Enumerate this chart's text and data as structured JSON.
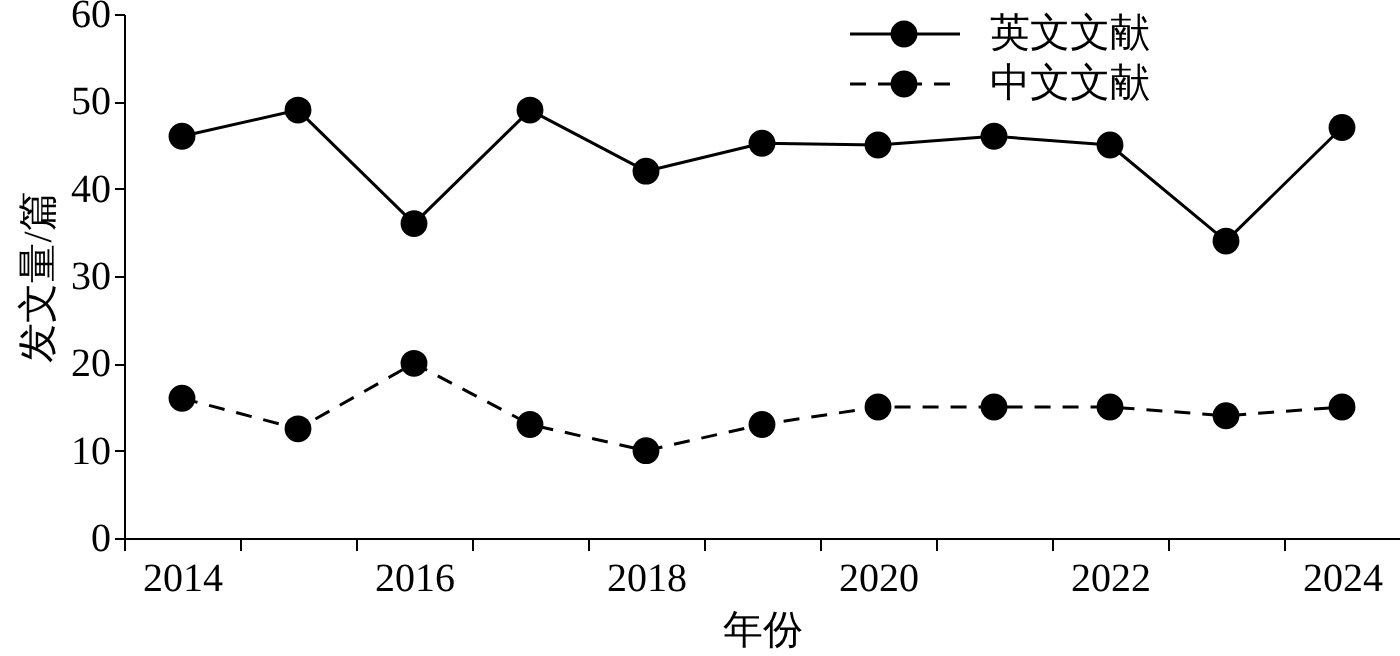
{
  "chart_data": {
    "type": "line",
    "xlabel": "年份",
    "ylabel": "发文量/篇",
    "categories": [
      "2014",
      null,
      "2016",
      null,
      "2018",
      null,
      "2020",
      null,
      "2022",
      null,
      "2024"
    ],
    "series": [
      {
        "name": "英文文献",
        "color": "#000000",
        "line_style": "solid",
        "values": [
          46,
          49,
          36,
          49,
          42,
          45.2,
          45,
          46,
          45,
          34,
          47
        ]
      },
      {
        "name": "中文文献",
        "color": "#000000",
        "line_style": "dashed",
        "values": [
          16,
          12.5,
          20,
          13,
          10,
          13,
          15,
          15,
          15,
          14,
          15
        ]
      }
    ],
    "ylim": [
      0,
      60
    ],
    "yticks": [
      0,
      10,
      20,
      30,
      40,
      50,
      60
    ],
    "grid": false,
    "legend": "top right",
    "marker": "circle"
  }
}
